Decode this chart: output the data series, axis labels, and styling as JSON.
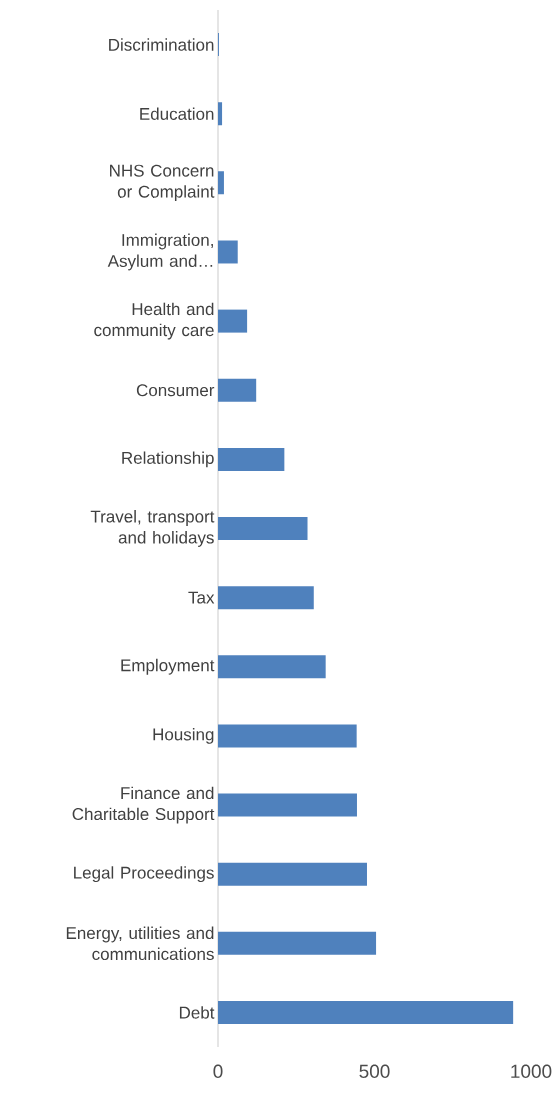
{
  "chart_data": {
    "type": "bar",
    "orientation": "horizontal",
    "categories": [
      "Discrimination",
      "Education",
      "NHS Concern or Complaint",
      "Immigration, Asylum and…",
      "Health and community care",
      "Consumer",
      "Relationship",
      "Travel, transport and holidays",
      "Tax",
      "Employment",
      "Housing",
      "Finance and Charitable Support",
      "Legal Proceedings",
      "Energy, utilities and communications",
      "Debt"
    ],
    "values": [
      3,
      13,
      19,
      63,
      93,
      122,
      212,
      286,
      306,
      344,
      443,
      444,
      476,
      505,
      943
    ],
    "color": "#4f81bd",
    "xlim": [
      0,
      1000
    ],
    "xticks": [
      0,
      500,
      1000
    ]
  }
}
